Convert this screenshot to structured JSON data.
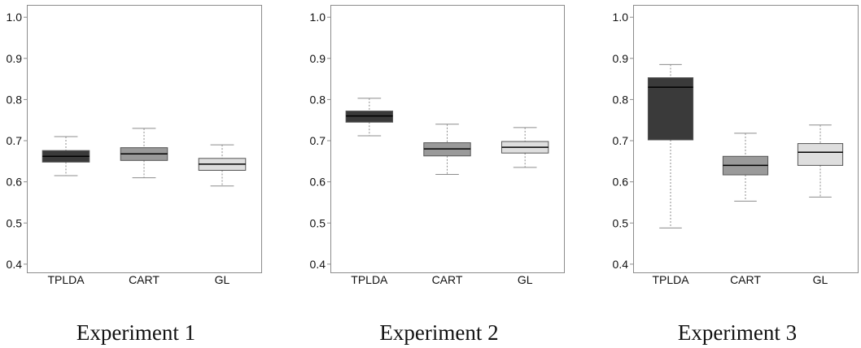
{
  "figure": {
    "colors": {
      "TPLDA": "#3a3a3a",
      "CART": "#9a9a9a",
      "GL": "#dedede",
      "frame": "#8c8c8c",
      "whisker": "#8c8c8c"
    }
  },
  "chart_data": [
    {
      "type": "box",
      "title": "Experiment 1",
      "categories": [
        "TPLDA",
        "CART",
        "GL"
      ],
      "ylim": [
        0.38,
        1.03
      ],
      "yticks": [
        "0.4",
        "0.5",
        "0.6",
        "0.7",
        "0.8",
        "0.9",
        "1.0"
      ],
      "grid": false,
      "series": [
        {
          "category": "TPLDA",
          "min": 0.615,
          "q1": 0.648,
          "median": 0.662,
          "q3": 0.676,
          "max": 0.71
        },
        {
          "category": "CART",
          "min": 0.61,
          "q1": 0.652,
          "median": 0.668,
          "q3": 0.683,
          "max": 0.73
        },
        {
          "category": "GL",
          "min": 0.59,
          "q1": 0.628,
          "median": 0.643,
          "q3": 0.657,
          "max": 0.69
        }
      ]
    },
    {
      "type": "box",
      "title": "Experiment 2",
      "categories": [
        "TPLDA",
        "CART",
        "GL"
      ],
      "ylim": [
        0.38,
        1.03
      ],
      "yticks": [
        "0.4",
        "0.5",
        "0.6",
        "0.7",
        "0.8",
        "0.9",
        "1.0"
      ],
      "grid": false,
      "series": [
        {
          "category": "TPLDA",
          "min": 0.712,
          "q1": 0.745,
          "median": 0.76,
          "q3": 0.772,
          "max": 0.803
        },
        {
          "category": "CART",
          "min": 0.618,
          "q1": 0.663,
          "median": 0.68,
          "q3": 0.695,
          "max": 0.74
        },
        {
          "category": "GL",
          "min": 0.635,
          "q1": 0.67,
          "median": 0.684,
          "q3": 0.698,
          "max": 0.732
        }
      ]
    },
    {
      "type": "box",
      "title": "Experiment 3",
      "categories": [
        "TPLDA",
        "CART",
        "GL"
      ],
      "ylim": [
        0.38,
        1.03
      ],
      "yticks": [
        "0.4",
        "0.5",
        "0.6",
        "0.7",
        "0.8",
        "0.9",
        "1.0"
      ],
      "grid": false,
      "series": [
        {
          "category": "TPLDA",
          "min": 0.488,
          "q1": 0.702,
          "median": 0.83,
          "q3": 0.853,
          "max": 0.885
        },
        {
          "category": "CART",
          "min": 0.553,
          "q1": 0.617,
          "median": 0.64,
          "q3": 0.662,
          "max": 0.718
        },
        {
          "category": "GL",
          "min": 0.563,
          "q1": 0.64,
          "median": 0.672,
          "q3": 0.693,
          "max": 0.738
        }
      ]
    }
  ]
}
